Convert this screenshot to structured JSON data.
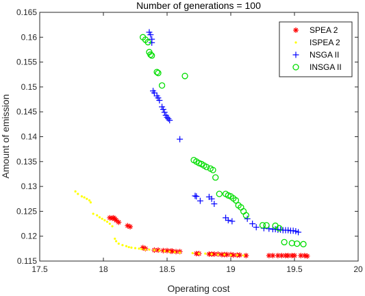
{
  "chart_data": {
    "type": "scatter",
    "title": "Number of generations = 100",
    "xlabel": "Operating cost",
    "ylabel": "Amount of emission",
    "xlim": [
      17.5,
      20
    ],
    "ylim": [
      0.115,
      0.165
    ],
    "xticks": [
      "17.5",
      "18",
      "18.5",
      "19",
      "19.5",
      "20"
    ],
    "yticks": [
      "0.115",
      "0.12",
      "0.125",
      "0.13",
      "0.135",
      "0.14",
      "0.145",
      "0.15",
      "0.155",
      "0.16",
      "0.165"
    ],
    "grid": false,
    "legend_position": "top-right",
    "series": [
      {
        "name": "SPEA 2",
        "marker": "asterisk",
        "color": "#ff0000",
        "x": [
          18.05,
          18.07,
          18.08,
          18.09,
          18.1,
          18.12,
          18.19,
          18.21,
          18.31,
          18.33,
          18.4,
          18.43,
          18.47,
          18.5,
          18.53,
          18.54,
          18.57,
          18.6,
          18.73,
          18.75,
          18.83,
          18.85,
          18.87,
          18.9,
          18.93,
          18.95,
          18.97,
          19,
          19.02,
          19.05,
          19.07,
          19.12,
          19.3,
          19.33,
          19.37,
          19.4,
          19.43,
          19.45,
          19.48,
          19.5,
          19.55,
          19.58,
          19.6
        ],
        "y": [
          0.1237,
          0.1236,
          0.1237,
          0.1235,
          0.1232,
          0.1228,
          0.1221,
          0.1219,
          0.1177,
          0.1175,
          0.1172,
          0.1172,
          0.1171,
          0.1171,
          0.117,
          0.117,
          0.1169,
          0.1169,
          0.1165,
          0.1165,
          0.1164,
          0.1164,
          0.1164,
          0.1164,
          0.1163,
          0.1163,
          0.1163,
          0.1163,
          0.1162,
          0.1162,
          0.1162,
          0.1161,
          0.1161,
          0.1161,
          0.1161,
          0.1161,
          0.1161,
          0.1161,
          0.1161,
          0.1161,
          0.1161,
          0.1161,
          0.116
        ]
      },
      {
        "name": "ISPEA 2",
        "marker": "point",
        "color": "#ffff00",
        "x": [
          17.78,
          17.8,
          17.83,
          17.85,
          17.87,
          17.89,
          17.9,
          17.92,
          17.95,
          17.97,
          17.99,
          18.01,
          18.03,
          18.05,
          18.07,
          18.09,
          18.1,
          18.12,
          18.15,
          18.18,
          18.2,
          18.22,
          18.25,
          18.28,
          18.3,
          18.33,
          18.36,
          18.4,
          18.44,
          18.48,
          18.52,
          18.56,
          18.6,
          18.7,
          18.75,
          18.8,
          18.85,
          18.9,
          18.95,
          19,
          19.05,
          19.1
        ],
        "y": [
          0.129,
          0.1285,
          0.128,
          0.1278,
          0.1275,
          0.1272,
          0.1268,
          0.1245,
          0.1242,
          0.1238,
          0.1235,
          0.1232,
          0.1229,
          0.1225,
          0.122,
          0.1195,
          0.119,
          0.1185,
          0.1182,
          0.118,
          0.1178,
          0.1177,
          0.1176,
          0.1175,
          0.1174,
          0.1173,
          0.1173,
          0.1172,
          0.1171,
          0.117,
          0.1169,
          0.1168,
          0.1167,
          0.1166,
          0.1165,
          0.1165,
          0.1164,
          0.1163,
          0.1163,
          0.1162,
          0.1162,
          0.1161
        ]
      },
      {
        "name": "NSGA II",
        "marker": "plus",
        "color": "#0000ff",
        "x": [
          18.36,
          18.37,
          18.38,
          18.38,
          18.39,
          18.4,
          18.42,
          18.43,
          18.44,
          18.46,
          18.47,
          18.48,
          18.49,
          18.5,
          18.51,
          18.52,
          18.6,
          18.72,
          18.73,
          18.76,
          18.83,
          18.85,
          18.87,
          18.96,
          18.98,
          19.01,
          19.13,
          19.17,
          19.2,
          19.26,
          19.3,
          19.33,
          19.35,
          19.37,
          19.39,
          19.41,
          19.43,
          19.45,
          19.47,
          19.49,
          19.51,
          19.53
        ],
        "y": [
          0.161,
          0.1605,
          0.1596,
          0.1589,
          0.1492,
          0.1488,
          0.1482,
          0.1478,
          0.1473,
          0.146,
          0.1455,
          0.1449,
          0.1443,
          0.1439,
          0.1436,
          0.1433,
          0.1395,
          0.1281,
          0.128,
          0.1271,
          0.1279,
          0.1275,
          0.1265,
          0.1237,
          0.1232,
          0.123,
          0.1235,
          0.1225,
          0.1218,
          0.1216,
          0.1215,
          0.1214,
          0.1214,
          0.1213,
          0.1213,
          0.1212,
          0.1212,
          0.1212,
          0.1211,
          0.1211,
          0.121,
          0.1208
        ]
      },
      {
        "name": "INSGA II",
        "marker": "circle",
        "color": "#00dd00",
        "x": [
          18.31,
          18.33,
          18.35,
          18.36,
          18.37,
          18.38,
          18.42,
          18.43,
          18.46,
          18.64,
          18.71,
          18.73,
          18.75,
          18.77,
          18.79,
          18.81,
          18.84,
          18.86,
          18.88,
          18.91,
          18.96,
          18.98,
          19,
          19.02,
          19.04,
          19.06,
          19.08,
          19.1,
          19.12,
          19.25,
          19.28,
          19.35,
          19.38,
          19.42,
          19.48,
          19.52,
          19.57
        ],
        "y": [
          0.16,
          0.1595,
          0.159,
          0.157,
          0.1565,
          0.1563,
          0.153,
          0.1528,
          0.1503,
          0.1522,
          0.1353,
          0.135,
          0.1347,
          0.1345,
          0.1342,
          0.1339,
          0.1336,
          0.1333,
          0.1318,
          0.1285,
          0.1285,
          0.1282,
          0.128,
          0.1276,
          0.1272,
          0.1262,
          0.1258,
          0.125,
          0.1242,
          0.1222,
          0.1222,
          0.1221,
          0.1216,
          0.1188,
          0.1186,
          0.1185,
          0.1184
        ]
      }
    ]
  }
}
